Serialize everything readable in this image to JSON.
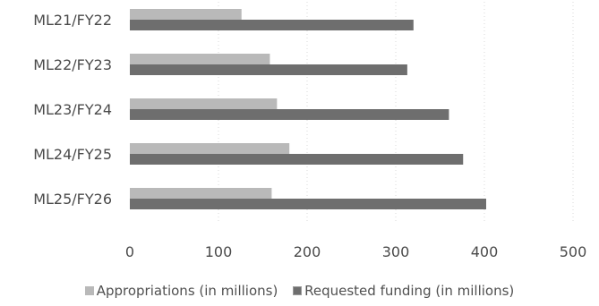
{
  "chart_data": {
    "type": "bar",
    "orientation": "horizontal",
    "categories": [
      "ML21/FY22",
      "ML22/FY23",
      "ML23/FY24",
      "ML24/FY25",
      "ML25/FY26"
    ],
    "series": [
      {
        "name": "Appropriations (in millions)",
        "values": [
          126,
          158,
          166,
          180,
          160
        ],
        "color": "#b9b9b9"
      },
      {
        "name": "Requested funding (in millions)",
        "values": [
          320,
          313,
          360,
          376,
          402
        ],
        "color": "#6e6e6e"
      }
    ],
    "xlim": [
      0,
      500
    ],
    "x_ticks": [
      "0",
      "100",
      "200",
      "300",
      "400",
      "500"
    ],
    "grid": "vertical-dotted",
    "legend_placement": "bottom"
  }
}
